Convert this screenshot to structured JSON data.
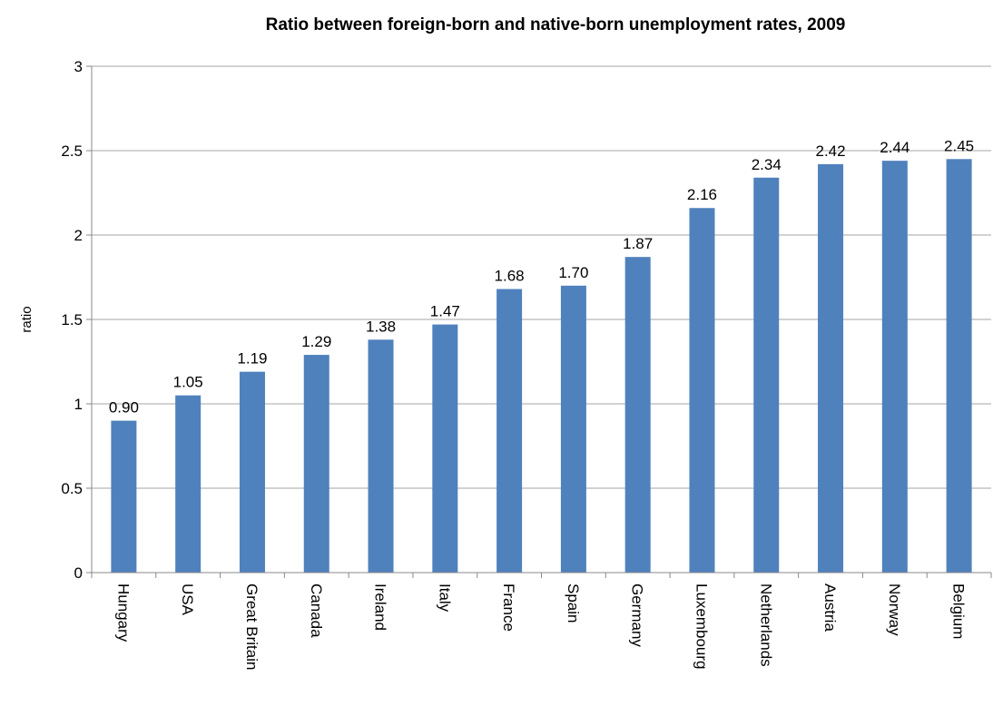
{
  "chart_data": {
    "type": "bar",
    "title": "Ratio between foreign-born and native-born unemployment rates, 2009",
    "xlabel": "",
    "ylabel": "ratio",
    "ylim": [
      0,
      3
    ],
    "yticks": [
      "0",
      "0.5",
      "1",
      "1.5",
      "2",
      "2.5",
      "3"
    ],
    "grid": true,
    "categories": [
      "Hungary",
      "USA",
      "Great Britain",
      "Canada",
      "Ireland",
      "Italy",
      "France",
      "Spain",
      "Germany",
      "Luxembourg",
      "Netherlands",
      "Austria",
      "Norway",
      "Belgium"
    ],
    "values": [
      0.9,
      1.05,
      1.19,
      1.29,
      1.38,
      1.47,
      1.68,
      1.7,
      1.87,
      2.16,
      2.34,
      2.42,
      2.44,
      2.45
    ],
    "value_labels": [
      "0.90",
      "1.05",
      "1.19",
      "1.29",
      "1.38",
      "1.47",
      "1.68",
      "1.70",
      "1.87",
      "2.16",
      "2.34",
      "2.42",
      "2.44",
      "2.45"
    ],
    "bar_color": "#4F81BD",
    "gridline_color": "#A6A6A6",
    "axis_color": "#888888"
  }
}
